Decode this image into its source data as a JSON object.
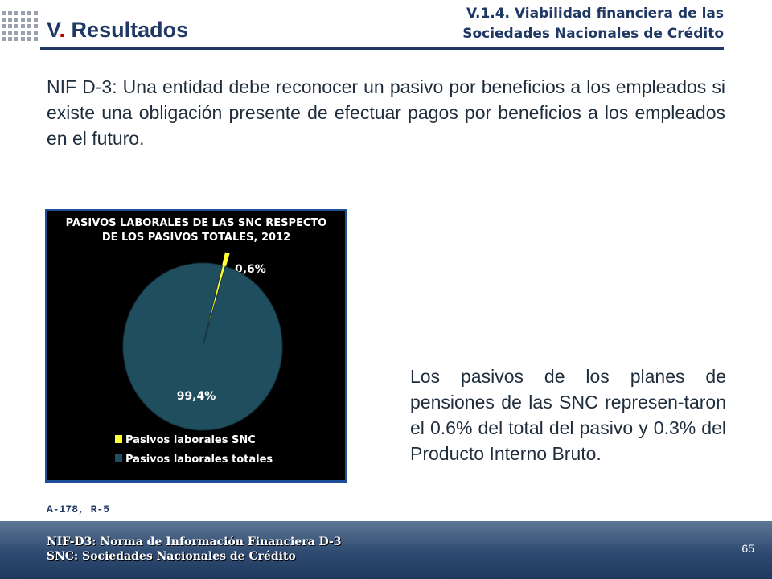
{
  "header": {
    "section_title": "V. Resultados",
    "subtitle_line1": "V.1.4. Viabilidad financiera de las",
    "subtitle_line2": "Sociedades Nacionales de Crédito"
  },
  "intro_text": "NIF D-3: Una entidad debe reconocer un pasivo por beneficios a los empleados si existe una obligación presente de efectuar pagos por beneficios a los empleados en el futuro.",
  "chart_data": {
    "type": "pie",
    "title_line1": "PASIVOS LABORALES DE LAS SNC RESPECTO",
    "title_line2": "DE LOS PASIVOS TOTALES, 2012",
    "slices": [
      {
        "name": "Pasivos laborales SNC",
        "value": 0.6,
        "label": "0,6%",
        "color": "#ffff33"
      },
      {
        "name": "Pasivos laborales totales",
        "value": 99.4,
        "label": "99,4%",
        "color": "#1f4e5f"
      }
    ],
    "legend_position": "bottom-left",
    "background": "#000000",
    "border_color": "#1f4e9b"
  },
  "summary_text": "Los pasivos de los planes de pensiones de las SNC represen-taron el 0.6% del total del pasivo y 0.3% del Producto Interno Bruto.",
  "source_ref": "A-178, R-5",
  "footer": {
    "note1": "NIF-D3: Norma de Información Financiera D-3",
    "note2": "SNC: Sociedades Nacionales de Crédito",
    "page_number": "65"
  },
  "colors": {
    "title": "#1f3864",
    "accent": "#c00000"
  }
}
